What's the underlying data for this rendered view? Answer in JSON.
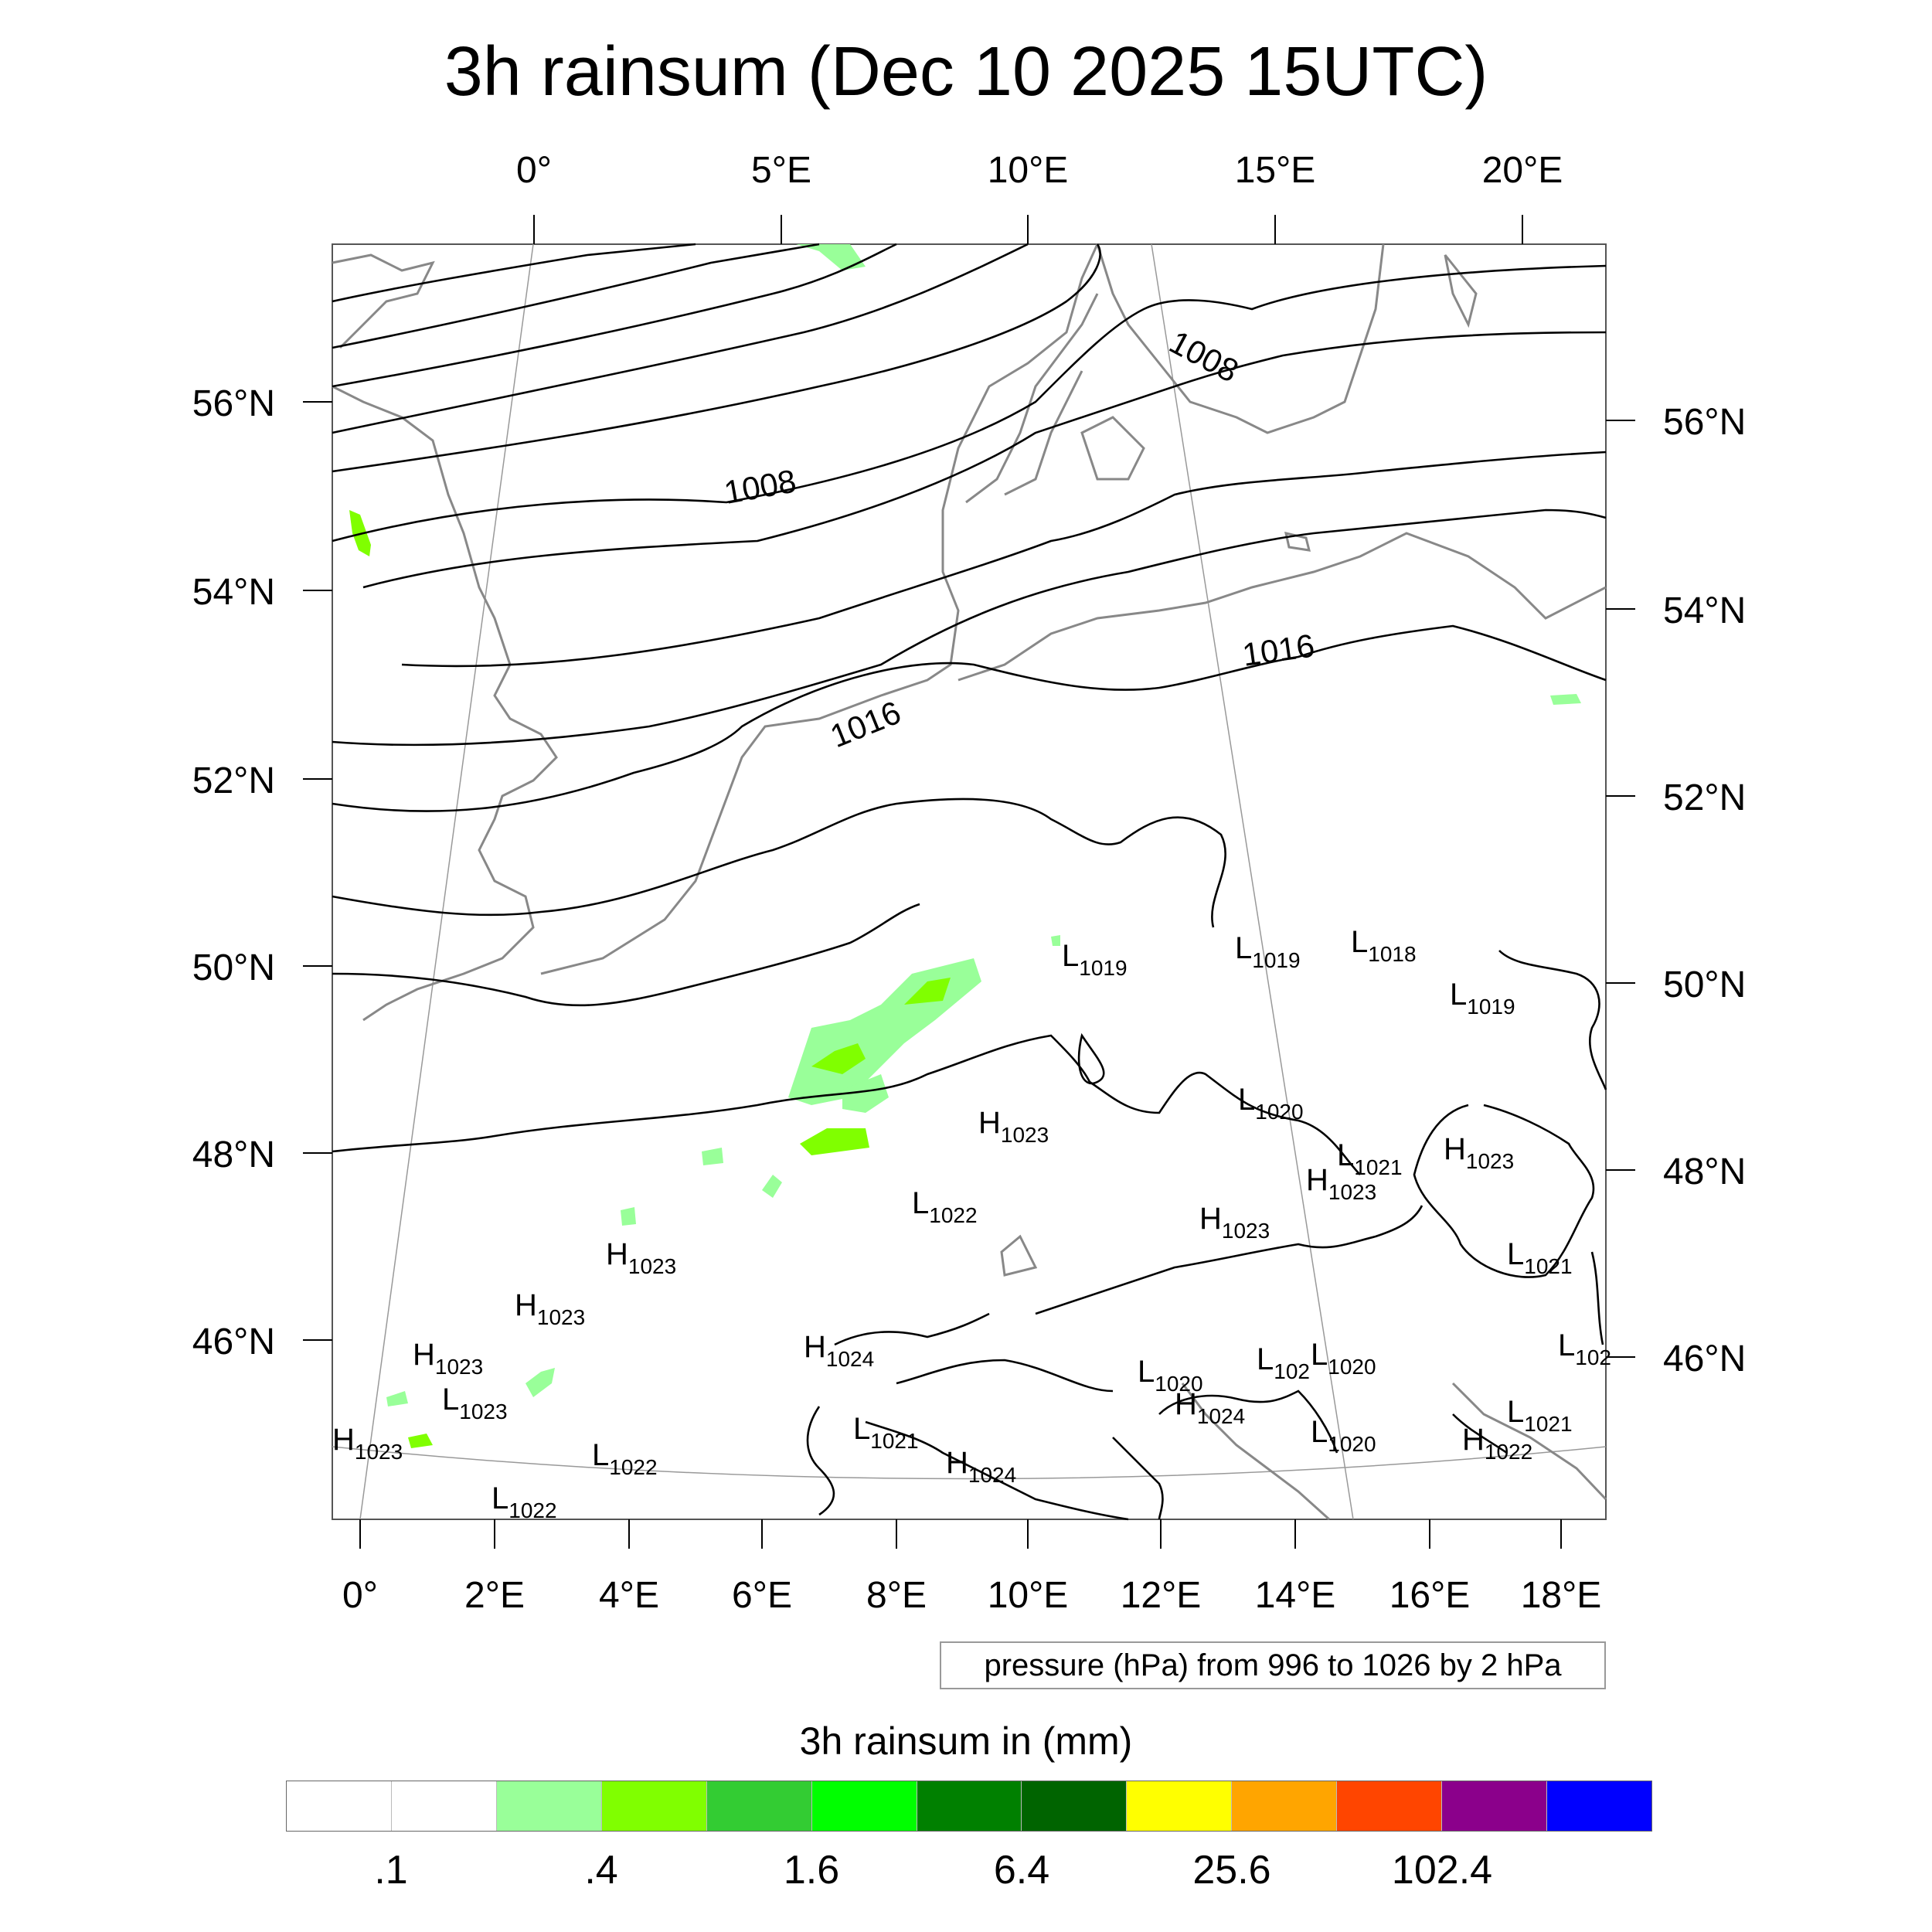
{
  "title": "3h rainsum (Dec 10 2025 15UTC)",
  "map": {
    "top_lon_labels": [
      "0°",
      "5°E",
      "10°E",
      "15°E",
      "20°E"
    ],
    "bottom_lon_labels": [
      "0°",
      "2°E",
      "4°E",
      "6°E",
      "8°E",
      "10°E",
      "12°E",
      "14°E",
      "16°E",
      "18°E"
    ],
    "left_lat_labels": [
      "56°N",
      "54°N",
      "52°N",
      "50°N",
      "48°N",
      "46°N"
    ],
    "right_lat_labels": [
      "56°N",
      "54°N",
      "52°N",
      "50°N",
      "48°N",
      "46°N"
    ],
    "isobar_labels": [
      "1008",
      "1008",
      "1016",
      "1016"
    ],
    "pressure_centers": [
      {
        "type": "L",
        "value": "1019"
      },
      {
        "type": "L",
        "value": "1019"
      },
      {
        "type": "L",
        "value": "1018"
      },
      {
        "type": "L",
        "value": "1019"
      },
      {
        "type": "L",
        "value": "1020"
      },
      {
        "type": "H",
        "value": "1023"
      },
      {
        "type": "L",
        "value": "1021"
      },
      {
        "type": "H",
        "value": "1023"
      },
      {
        "type": "H",
        "value": "1023"
      },
      {
        "type": "L",
        "value": "1022"
      },
      {
        "type": "H",
        "value": "1023"
      },
      {
        "type": "H",
        "value": "1023"
      },
      {
        "type": "L",
        "value": "1021"
      },
      {
        "type": "H",
        "value": "1023"
      },
      {
        "type": "H",
        "value": "1024"
      },
      {
        "type": "H",
        "value": "1023"
      },
      {
        "type": "L",
        "value": "1023"
      },
      {
        "type": "L",
        "value": "1020"
      },
      {
        "type": "L",
        "value": "102"
      },
      {
        "type": "L",
        "value": "1020"
      },
      {
        "type": "L",
        "value": "102"
      },
      {
        "type": "H",
        "value": "1024"
      },
      {
        "type": "L",
        "value": "1021"
      },
      {
        "type": "L",
        "value": "1021"
      },
      {
        "type": "H",
        "value": "1023"
      },
      {
        "type": "L",
        "value": "1022"
      },
      {
        "type": "H",
        "value": "1024"
      },
      {
        "type": "L",
        "value": "1020"
      },
      {
        "type": "H",
        "value": "1022"
      },
      {
        "type": "L",
        "value": "1022"
      }
    ]
  },
  "info_box": "pressure (hPa) from 996 to 1026 by 2 hPa",
  "legend": {
    "title": "3h rainsum in (mm)",
    "colors": [
      "#ffffff",
      "#ffffff",
      "#99ff99",
      "#80ff00",
      "#33cc33",
      "#00ff00",
      "#008000",
      "#006400",
      "#ffff00",
      "#ffa500",
      "#ff4500",
      "#8b008b",
      "#0000ff"
    ],
    "labels": [
      ".1",
      ".4",
      "1.6",
      "6.4",
      "25.6",
      "102.4"
    ]
  }
}
